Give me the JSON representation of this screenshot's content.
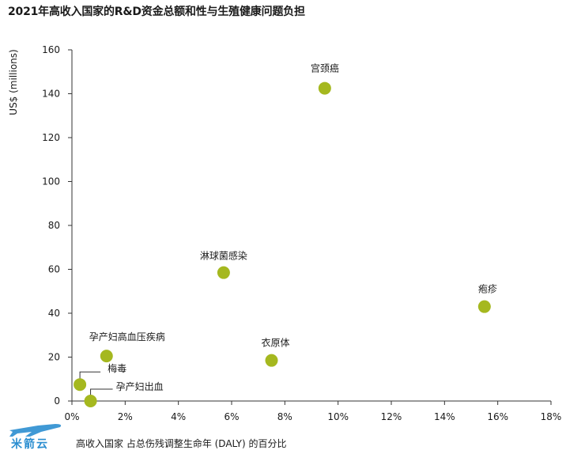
{
  "chart_data": {
    "type": "scatter",
    "title": "2021年高收入国家的R&D资金总额和性与生殖健康问题负担",
    "ylabel": "US$ (millions)",
    "xlabel": "高收入国家 占总伤残调整生命年 (DALY) 的百分比",
    "xlim": [
      0,
      18
    ],
    "ylim": [
      0,
      160
    ],
    "x_ticks": [
      "0%",
      "2%",
      "4%",
      "6%",
      "8%",
      "10%",
      "12%",
      "14%",
      "16%",
      "18%"
    ],
    "y_ticks": [
      "0",
      "20",
      "40",
      "60",
      "80",
      "100",
      "120",
      "140",
      "160"
    ],
    "grid": false,
    "legend": "none",
    "point_color": "#a5b81f",
    "points": [
      {
        "label": "宫颈癌",
        "x": 9.5,
        "y": 142.5
      },
      {
        "label": "淋球菌感染",
        "x": 5.7,
        "y": 58.5
      },
      {
        "label": "疱疹",
        "x": 15.5,
        "y": 43
      },
      {
        "label": "衣原体",
        "x": 7.5,
        "y": 18.5
      },
      {
        "label": "孕产妇高血压疾病",
        "x": 1.3,
        "y": 20.5
      },
      {
        "label": "梅毒",
        "x": 0.3,
        "y": 7.5
      },
      {
        "label": "孕产妇出血",
        "x": 0.7,
        "y": 0
      }
    ]
  },
  "watermark": {
    "text": "米箭云"
  }
}
